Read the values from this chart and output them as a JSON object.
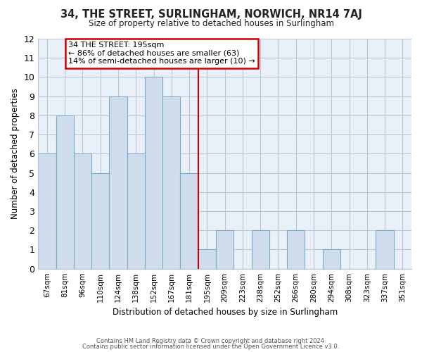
{
  "title": "34, THE STREET, SURLINGHAM, NORWICH, NR14 7AJ",
  "subtitle": "Size of property relative to detached houses in Surlingham",
  "xlabel": "Distribution of detached houses by size in Surlingham",
  "ylabel": "Number of detached properties",
  "bar_labels": [
    "67sqm",
    "81sqm",
    "96sqm",
    "110sqm",
    "124sqm",
    "138sqm",
    "152sqm",
    "167sqm",
    "181sqm",
    "195sqm",
    "209sqm",
    "223sqm",
    "238sqm",
    "252sqm",
    "266sqm",
    "280sqm",
    "294sqm",
    "308sqm",
    "323sqm",
    "337sqm",
    "351sqm"
  ],
  "bar_values": [
    6,
    8,
    6,
    5,
    9,
    6,
    10,
    9,
    5,
    1,
    2,
    0,
    2,
    0,
    2,
    0,
    1,
    0,
    0,
    2,
    0
  ],
  "bar_color": "#cfdded",
  "bar_edge_color": "#7aaac8",
  "reference_line_color": "#cc0000",
  "ylim": [
    0,
    12
  ],
  "yticks": [
    0,
    1,
    2,
    3,
    4,
    5,
    6,
    7,
    8,
    9,
    10,
    11,
    12
  ],
  "annotation_title": "34 THE STREET: 195sqm",
  "annotation_line1": "← 86% of detached houses are smaller (63)",
  "annotation_line2": "14% of semi-detached houses are larger (10) →",
  "annotation_box_color": "#ffffff",
  "annotation_box_edge_color": "#cc0000",
  "footnote1": "Contains HM Land Registry data © Crown copyright and database right 2024.",
  "footnote2": "Contains public sector information licensed under the Open Government Licence v3.0.",
  "background_color": "#ffffff",
  "plot_bg_color": "#eaf0f8",
  "grid_color": "#b8c8d8"
}
